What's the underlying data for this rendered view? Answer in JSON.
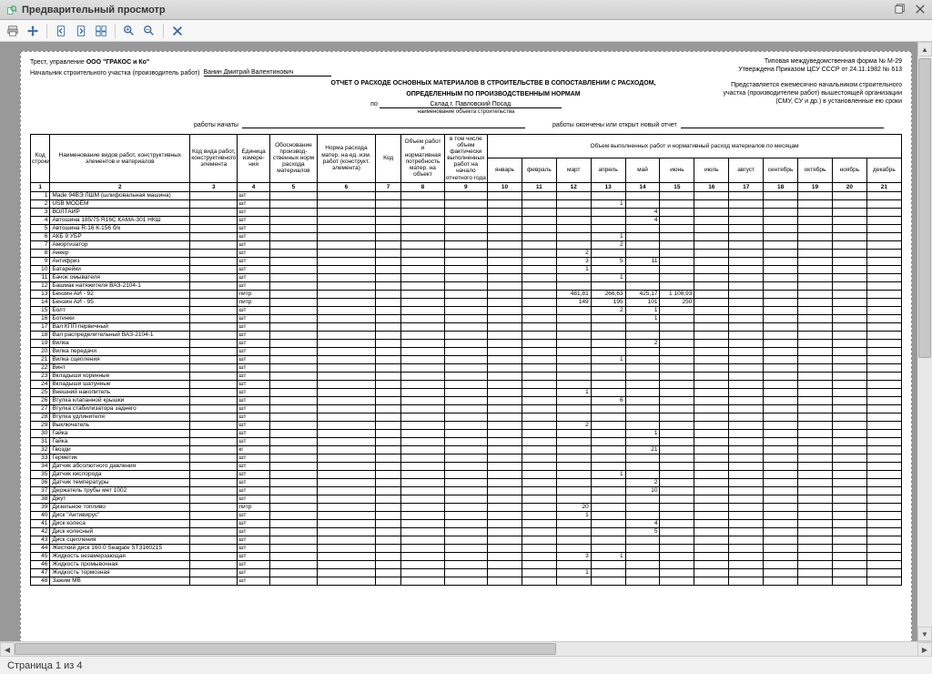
{
  "window": {
    "title": "Предварительный просмотр"
  },
  "status": {
    "page_text": "Страница 1 из 4"
  },
  "header": {
    "form_line1": "Типовая междуведомственная форма № М-29",
    "form_line2": "Утверждена Приказом ЦСУ СССР от 24.11.1982 № 613",
    "right_note1": "Представляется ежемесячно начальником строительного",
    "right_note2": "участка (производителем работ) вышестоящей организации",
    "right_note3": "(СМУ, СУ и др.) в установленные ею сроки",
    "trust_label": "Трест, управление",
    "trust_value": "ООО \"ГРАКОС и Ко\"",
    "foreman_label": "Начальник строительного участка (производитель работ)",
    "foreman_value": "Ванин Дмитрий Валентинович",
    "title1": "ОТЧЕТ О РАСХОДЕ ОСНОВНЫХ МАТЕРИАЛОВ В СТРОИТЕЛЬСТВЕ В СОПОСТАВЛЕНИИ С РАСХОДОМ,",
    "title2": "ОПРЕДЕЛЕННЫМ ПО ПРОИЗВОДСТВЕННЫМ НОРМАМ",
    "by_label": "по",
    "by_value": "Склад г. Павловский Посад",
    "by_sub": "наименование объекта строительства",
    "works_started": "работы начаты",
    "works_ended": "работы окончены или открыт новый отчет"
  },
  "columns": {
    "row_no": "Код строки",
    "name": "Наименование видов работ, конструктивных элементов и материалов",
    "kv": "Код вида работ, конструктивного элемента",
    "ed": "Единица измере- ния",
    "ob": "Обоснование производ- ственных норм расхода материалов",
    "nr": "Норма расхода матер. на ед. изм. работ (конструкт. элемента)",
    "kod": "Код",
    "obw": "Объем работ и нормативная потребность матер. на объект",
    "tch": "в том числе объем фактически выполненных работ на начало отчетного года",
    "months_header": "Объем выполненных работ и нормативный расход материалов по месяцам",
    "months": [
      "январь",
      "февраль",
      "март",
      "апрель",
      "май",
      "июнь",
      "июль",
      "август",
      "сентябрь",
      "октябрь",
      "ноябрь",
      "декабрь"
    ],
    "numrow": [
      "1",
      "2",
      "3",
      "4",
      "5",
      "6",
      "7",
      "8",
      "9",
      "10",
      "11",
      "12",
      "13",
      "14",
      "15",
      "16",
      "17",
      "18",
      "19",
      "20",
      "21"
    ]
  },
  "rows": [
    {
      "n": "1",
      "name": "Made 94ВЭ ЛШМ (шлифовальная машина)",
      "ed": "шт",
      "v": {}
    },
    {
      "n": "2",
      "name": "USB MODEM",
      "ed": "шт",
      "v": {
        "13": "1"
      }
    },
    {
      "n": "3",
      "name": "ВОЛТАЙР",
      "ed": "шт",
      "v": {
        "14": "4"
      }
    },
    {
      "n": "4",
      "name": "Автошина 185/75 R16С КАМА-301 НКШ",
      "ed": "шт",
      "v": {
        "14": "4"
      }
    },
    {
      "n": "5",
      "name": "Автошина R-16 К-156 б/к",
      "ed": "шт",
      "v": {}
    },
    {
      "n": "6",
      "name": "АКБ 9 УБР",
      "ed": "шт",
      "v": {
        "13": "1"
      }
    },
    {
      "n": "7",
      "name": "Амортизатор",
      "ed": "шт",
      "v": {
        "13": "2"
      }
    },
    {
      "n": "8",
      "name": "Анкер",
      "ed": "шт",
      "v": {
        "12": "2"
      }
    },
    {
      "n": "9",
      "name": "Антифриз",
      "ed": "шт",
      "v": {
        "12": "3",
        "13": "5",
        "14": "11"
      }
    },
    {
      "n": "10",
      "name": "Батарейки",
      "ed": "шт",
      "v": {
        "12": "1"
      }
    },
    {
      "n": "11",
      "name": "Бачок омывателя",
      "ed": "шт",
      "v": {
        "13": "1"
      }
    },
    {
      "n": "12",
      "name": "Башмак натяжителя ВАЗ-2104-1",
      "ed": "шт",
      "v": {}
    },
    {
      "n": "13",
      "name": "Бензин АИ - 92",
      "ed": "литр",
      "v": {
        "12": "481,81",
        "13": "266,63",
        "14": "425,17",
        "15": "1 108,93"
      }
    },
    {
      "n": "14",
      "name": "Бензин АИ - 95",
      "ed": "литр",
      "v": {
        "12": "149",
        "13": "195",
        "14": "101",
        "15": "250"
      }
    },
    {
      "n": "15",
      "name": "Болт",
      "ed": "шт",
      "v": {
        "13": "2",
        "14": "1"
      }
    },
    {
      "n": "16",
      "name": "Ботинки",
      "ed": "шт",
      "v": {
        "14": "1"
      }
    },
    {
      "n": "17",
      "name": "Вал КПП первичный",
      "ed": "шт",
      "v": {}
    },
    {
      "n": "18",
      "name": "Вал распределительный ВАЗ-2104-1",
      "ed": "шт",
      "v": {}
    },
    {
      "n": "19",
      "name": "Вилка",
      "ed": "шт",
      "v": {
        "14": "2"
      }
    },
    {
      "n": "20",
      "name": "Вилка передачи",
      "ed": "шт",
      "v": {}
    },
    {
      "n": "21",
      "name": "Вилка сцепления",
      "ed": "шт",
      "v": {
        "13": "1"
      }
    },
    {
      "n": "22",
      "name": "Винт",
      "ed": "шт",
      "v": {}
    },
    {
      "n": "23",
      "name": "Вкладыши коренные",
      "ed": "шт",
      "v": {}
    },
    {
      "n": "24",
      "name": "Вкладыши шатунные",
      "ed": "шт",
      "v": {}
    },
    {
      "n": "25",
      "name": "Внешний накопитель",
      "ed": "шт",
      "v": {
        "12": "1"
      }
    },
    {
      "n": "26",
      "name": "Втулка клапанной крышки",
      "ed": "шт",
      "v": {
        "13": "6"
      }
    },
    {
      "n": "27",
      "name": "Втулка стабилизатора заднего",
      "ed": "шт",
      "v": {}
    },
    {
      "n": "28",
      "name": "Втулка удлинителя",
      "ed": "шт",
      "v": {}
    },
    {
      "n": "29",
      "name": "Выключатель",
      "ed": "шт",
      "v": {
        "12": "2"
      }
    },
    {
      "n": "30",
      "name": "Гайка",
      "ed": "шт",
      "v": {
        "14": "1"
      }
    },
    {
      "n": "31",
      "name": "Гайка",
      "ed": "шт",
      "v": {}
    },
    {
      "n": "32",
      "name": "Гвозди",
      "ed": "кг",
      "v": {
        "14": "21"
      }
    },
    {
      "n": "33",
      "name": "Герметик",
      "ed": "шт",
      "v": {}
    },
    {
      "n": "34",
      "name": "Датчик абсолютного давления",
      "ed": "шт",
      "v": {}
    },
    {
      "n": "35",
      "name": "Датчик кислорода",
      "ed": "шт",
      "v": {
        "13": "1"
      }
    },
    {
      "n": "36",
      "name": "Датчик температуры",
      "ed": "шт",
      "v": {
        "14": "2"
      }
    },
    {
      "n": "37",
      "name": "Держатель трубы мет 1002",
      "ed": "шт",
      "v": {
        "14": "10"
      }
    },
    {
      "n": "38",
      "name": "Джут",
      "ed": "шт",
      "v": {}
    },
    {
      "n": "39",
      "name": "Дизельное топливо",
      "ed": "литр",
      "v": {
        "12": "20"
      }
    },
    {
      "n": "40",
      "name": "Диск \"Антивирус\"",
      "ed": "шт",
      "v": {
        "12": "1"
      }
    },
    {
      "n": "41",
      "name": "Диск колеса",
      "ed": "шт",
      "v": {
        "14": "4"
      }
    },
    {
      "n": "42",
      "name": "Диск колесный",
      "ed": "шт",
      "v": {
        "14": "5"
      }
    },
    {
      "n": "43",
      "name": "Диск сцепления",
      "ed": "шт",
      "v": {}
    },
    {
      "n": "44",
      "name": "Жесткий диск 160.0 Seagate ST3160215",
      "ed": "шт",
      "v": {}
    },
    {
      "n": "45",
      "name": "Жидкость незамерзающая",
      "ed": "шт",
      "v": {
        "12": "3",
        "13": "1"
      }
    },
    {
      "n": "46",
      "name": "Жидкость промывочная",
      "ed": "шт",
      "v": {}
    },
    {
      "n": "47",
      "name": "Жидкость тормозная",
      "ed": "шт",
      "v": {
        "12": "1"
      }
    },
    {
      "n": "48",
      "name": "Зажим МВ",
      "ed": "шт",
      "v": {}
    }
  ]
}
